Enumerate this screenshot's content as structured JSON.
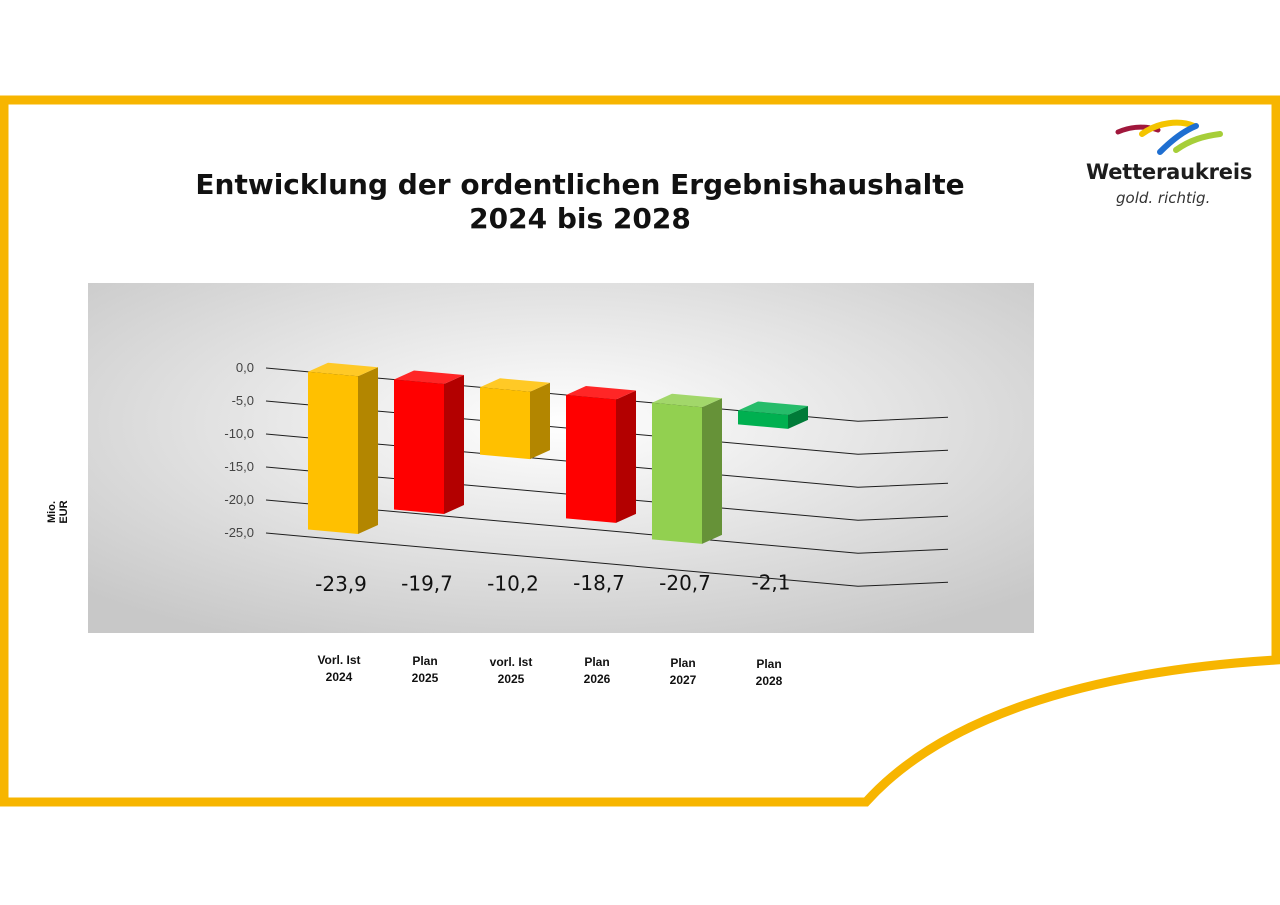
{
  "title_line1": "Entwicklung der ordentlichen Ergebnishaushalte",
  "title_line2": "2024 bis 2028",
  "logo": {
    "name": "Wetteraukreis",
    "slogan": "gold. richtig."
  },
  "colors": {
    "frame": "#f7b500",
    "amber": "#ffc000",
    "red": "#ff0000",
    "light_green": "#92d050",
    "green": "#00b050"
  },
  "chart_data": {
    "type": "bar",
    "title": "Entwicklung der ordentlichen Ergebnishaushalte 2024 bis 2028",
    "ylabel": "Mio. EUR",
    "xlabel": "",
    "ylim": [
      -25,
      0
    ],
    "yticks": [
      "0,0",
      "-5,0",
      "-10,0",
      "-15,0",
      "-20,0",
      "-25,0"
    ],
    "grid": true,
    "three_d": true,
    "categories": [
      {
        "label": "Vorl. Ist\n2024",
        "value": -23.9,
        "value_label": "-23,9",
        "color": "#ffc000"
      },
      {
        "label": "Plan\n2025",
        "value": -19.7,
        "value_label": "-19,7",
        "color": "#ff0000"
      },
      {
        "label": "vorl. Ist\n2025",
        "value": -10.2,
        "value_label": "-10,2",
        "color": "#ffc000"
      },
      {
        "label": "Plan\n2026",
        "value": -18.7,
        "value_label": "-18,7",
        "color": "#ff0000"
      },
      {
        "label": "Plan\n2027",
        "value": -20.7,
        "value_label": "-20,7",
        "color": "#92d050"
      },
      {
        "label": "Plan\n2028",
        "value": -2.1,
        "value_label": "-2,1",
        "color": "#00b050"
      }
    ]
  }
}
